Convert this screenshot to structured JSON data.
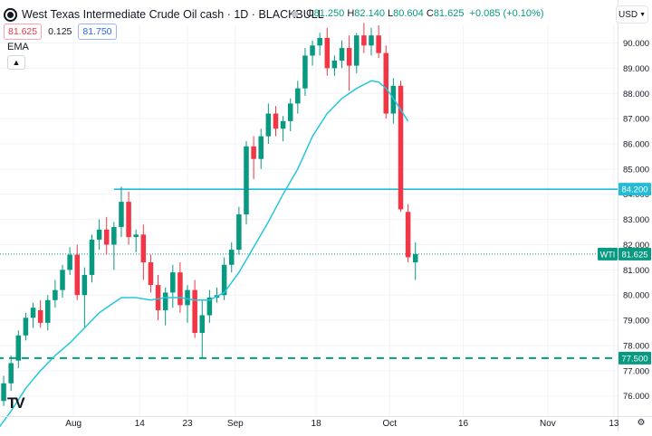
{
  "header": {
    "title": "West Texas Intermediate Crude Oil cash · 1D · BLACKBULL",
    "ohlc": [
      {
        "key": "O",
        "value": "81.250"
      },
      {
        "key": "H",
        "value": "82.140"
      },
      {
        "key": "L",
        "value": "80.604"
      },
      {
        "key": "C",
        "value": "81.625"
      }
    ],
    "change": "+0.085 (+0.10%)",
    "bid": "81.625",
    "spread": "0.125",
    "ask": "81.750",
    "indicator": "EMA",
    "currency": "USD",
    "collapse_icon": "chevron-up-icon",
    "logo_text": "TV"
  },
  "colors": {
    "up": "#089981",
    "down": "#f23645",
    "ema": "#26c6da",
    "hline": "#22bcd6",
    "dashed": "#089981",
    "grid": "#f0f3fa",
    "text": "#131722"
  },
  "chart_data": {
    "type": "candlestick",
    "title": "West Texas Intermediate Crude Oil cash · 1D · BLACKBULL",
    "ylim": [
      75.2,
      90.7
    ],
    "y_ticks": [
      "90.000",
      "89.000",
      "88.000",
      "87.000",
      "86.000",
      "85.000",
      "84.000",
      "83.000",
      "82.000",
      "81.000",
      "80.000",
      "79.000",
      "78.000",
      "77.000",
      "76.000"
    ],
    "x_ticks": [
      {
        "label": "Aug",
        "at": 10.5
      },
      {
        "label": "14",
        "at": 19.5
      },
      {
        "label": "23",
        "at": 26
      },
      {
        "label": "Sep",
        "at": 32.5
      },
      {
        "label": "18",
        "at": 43.5
      },
      {
        "label": "Oct",
        "at": 53.5
      },
      {
        "label": "16",
        "at": 63.5
      },
      {
        "label": "Nov",
        "at": 75
      },
      {
        "label": "13",
        "at": 84
      }
    ],
    "x_range": [
      0.5,
      84.5
    ],
    "candles": [
      {
        "o": 75.5,
        "h": 76.2,
        "l": 75.2,
        "c": 75.8
      },
      {
        "o": 75.8,
        "h": 76.8,
        "l": 75.6,
        "c": 76.5
      },
      {
        "o": 76.5,
        "h": 77.6,
        "l": 76.2,
        "c": 77.3
      },
      {
        "o": 77.4,
        "h": 78.6,
        "l": 77.1,
        "c": 78.4
      },
      {
        "o": 78.4,
        "h": 79.3,
        "l": 78.2,
        "c": 79.1
      },
      {
        "o": 79.1,
        "h": 79.7,
        "l": 78.7,
        "c": 79.5
      },
      {
        "o": 79.4,
        "h": 79.8,
        "l": 78.7,
        "c": 78.9
      },
      {
        "o": 78.9,
        "h": 80.0,
        "l": 78.6,
        "c": 79.8
      },
      {
        "o": 79.8,
        "h": 80.6,
        "l": 79.5,
        "c": 80.2
      },
      {
        "o": 80.2,
        "h": 81.2,
        "l": 79.9,
        "c": 81.0
      },
      {
        "o": 81.0,
        "h": 81.9,
        "l": 80.8,
        "c": 81.6
      },
      {
        "o": 81.6,
        "h": 82.0,
        "l": 79.8,
        "c": 80.0
      },
      {
        "o": 80.0,
        "h": 81.1,
        "l": 78.7,
        "c": 80.8
      },
      {
        "o": 80.8,
        "h": 82.4,
        "l": 80.5,
        "c": 82.2
      },
      {
        "o": 82.2,
        "h": 83.0,
        "l": 81.8,
        "c": 82.6
      },
      {
        "o": 82.6,
        "h": 83.1,
        "l": 81.6,
        "c": 82.0
      },
      {
        "o": 82.0,
        "h": 82.9,
        "l": 81.0,
        "c": 82.7
      },
      {
        "o": 82.7,
        "h": 84.3,
        "l": 82.3,
        "c": 83.7
      },
      {
        "o": 83.7,
        "h": 84.1,
        "l": 82.0,
        "c": 82.3
      },
      {
        "o": 82.3,
        "h": 82.6,
        "l": 81.7,
        "c": 82.4
      },
      {
        "o": 82.4,
        "h": 82.8,
        "l": 80.6,
        "c": 81.3
      },
      {
        "o": 81.3,
        "h": 81.6,
        "l": 80.1,
        "c": 80.4
      },
      {
        "o": 80.4,
        "h": 80.8,
        "l": 79.0,
        "c": 79.4
      },
      {
        "o": 79.4,
        "h": 80.3,
        "l": 78.8,
        "c": 80.1
      },
      {
        "o": 80.1,
        "h": 81.2,
        "l": 79.5,
        "c": 80.9
      },
      {
        "o": 80.9,
        "h": 81.3,
        "l": 79.3,
        "c": 79.6
      },
      {
        "o": 79.6,
        "h": 80.4,
        "l": 78.9,
        "c": 80.2
      },
      {
        "o": 80.2,
        "h": 80.6,
        "l": 78.3,
        "c": 78.5
      },
      {
        "o": 78.5,
        "h": 79.8,
        "l": 77.5,
        "c": 79.2
      },
      {
        "o": 79.2,
        "h": 80.2,
        "l": 78.9,
        "c": 79.9
      },
      {
        "o": 79.9,
        "h": 80.3,
        "l": 79.7,
        "c": 80.0
      },
      {
        "o": 80.0,
        "h": 81.5,
        "l": 79.8,
        "c": 81.2
      },
      {
        "o": 81.2,
        "h": 82.1,
        "l": 80.9,
        "c": 81.8
      },
      {
        "o": 81.8,
        "h": 83.5,
        "l": 81.6,
        "c": 83.2
      },
      {
        "o": 83.2,
        "h": 86.1,
        "l": 82.8,
        "c": 85.9
      },
      {
        "o": 85.9,
        "h": 86.3,
        "l": 84.6,
        "c": 85.4
      },
      {
        "o": 85.4,
        "h": 86.6,
        "l": 85.0,
        "c": 86.3
      },
      {
        "o": 86.3,
        "h": 87.6,
        "l": 86.0,
        "c": 87.2
      },
      {
        "o": 87.2,
        "h": 87.5,
        "l": 86.3,
        "c": 86.6
      },
      {
        "o": 86.6,
        "h": 87.1,
        "l": 86.1,
        "c": 86.9
      },
      {
        "o": 86.9,
        "h": 87.8,
        "l": 86.5,
        "c": 87.6
      },
      {
        "o": 87.6,
        "h": 88.5,
        "l": 87.2,
        "c": 88.2
      },
      {
        "o": 88.2,
        "h": 89.8,
        "l": 87.9,
        "c": 89.5
      },
      {
        "o": 89.5,
        "h": 90.1,
        "l": 89.1,
        "c": 89.9
      },
      {
        "o": 89.9,
        "h": 90.4,
        "l": 89.5,
        "c": 90.2
      },
      {
        "o": 90.2,
        "h": 90.6,
        "l": 88.7,
        "c": 89.0
      },
      {
        "o": 89.0,
        "h": 89.5,
        "l": 88.7,
        "c": 89.3
      },
      {
        "o": 89.3,
        "h": 90.1,
        "l": 89.0,
        "c": 89.8
      },
      {
        "o": 89.8,
        "h": 90.3,
        "l": 88.1,
        "c": 89.1
      },
      {
        "o": 89.1,
        "h": 90.4,
        "l": 88.8,
        "c": 90.3
      },
      {
        "o": 90.3,
        "h": 90.8,
        "l": 89.6,
        "c": 89.9
      },
      {
        "o": 89.9,
        "h": 90.6,
        "l": 89.5,
        "c": 90.3
      },
      {
        "o": 90.3,
        "h": 90.7,
        "l": 89.4,
        "c": 89.6
      },
      {
        "o": 89.6,
        "h": 89.9,
        "l": 87.0,
        "c": 87.2
      },
      {
        "o": 87.2,
        "h": 88.6,
        "l": 86.8,
        "c": 88.3
      },
      {
        "o": 88.3,
        "h": 88.5,
        "l": 83.3,
        "c": 83.4
      },
      {
        "o": 83.3,
        "h": 83.6,
        "l": 81.3,
        "c": 81.5
      },
      {
        "o": 81.3,
        "h": 82.1,
        "l": 80.6,
        "c": 81.625
      }
    ],
    "ema": [
      [
        0,
        74.6
      ],
      [
        2,
        75.4
      ],
      [
        4,
        76.3
      ],
      [
        6,
        77.0
      ],
      [
        8,
        77.6
      ],
      [
        10,
        78.1
      ],
      [
        12,
        78.7
      ],
      [
        14,
        79.3
      ],
      [
        16,
        79.7
      ],
      [
        17,
        79.9
      ],
      [
        19,
        79.9
      ],
      [
        21,
        79.8
      ],
      [
        23,
        79.9
      ],
      [
        25,
        79.9
      ],
      [
        27,
        79.8
      ],
      [
        29,
        79.8
      ],
      [
        31,
        80.1
      ],
      [
        33,
        80.9
      ],
      [
        35,
        81.9
      ],
      [
        37,
        82.9
      ],
      [
        39,
        84.0
      ],
      [
        41,
        85.0
      ],
      [
        43,
        86.3
      ],
      [
        45,
        87.2
      ],
      [
        47,
        87.8
      ],
      [
        49,
        88.2
      ],
      [
        51,
        88.5
      ],
      [
        52,
        88.45
      ],
      [
        53,
        88.2
      ],
      [
        54,
        87.8
      ],
      [
        56,
        86.9
      ]
    ],
    "hlines": [
      {
        "label": "84.200",
        "value": 84.2,
        "style": "solid",
        "x_from": 16
      },
      {
        "label": "77.500",
        "value": 77.5,
        "style": "dashed",
        "x_from": 0
      }
    ],
    "last_price": {
      "name": "WTI",
      "label": "81.625",
      "value": 81.625
    }
  }
}
